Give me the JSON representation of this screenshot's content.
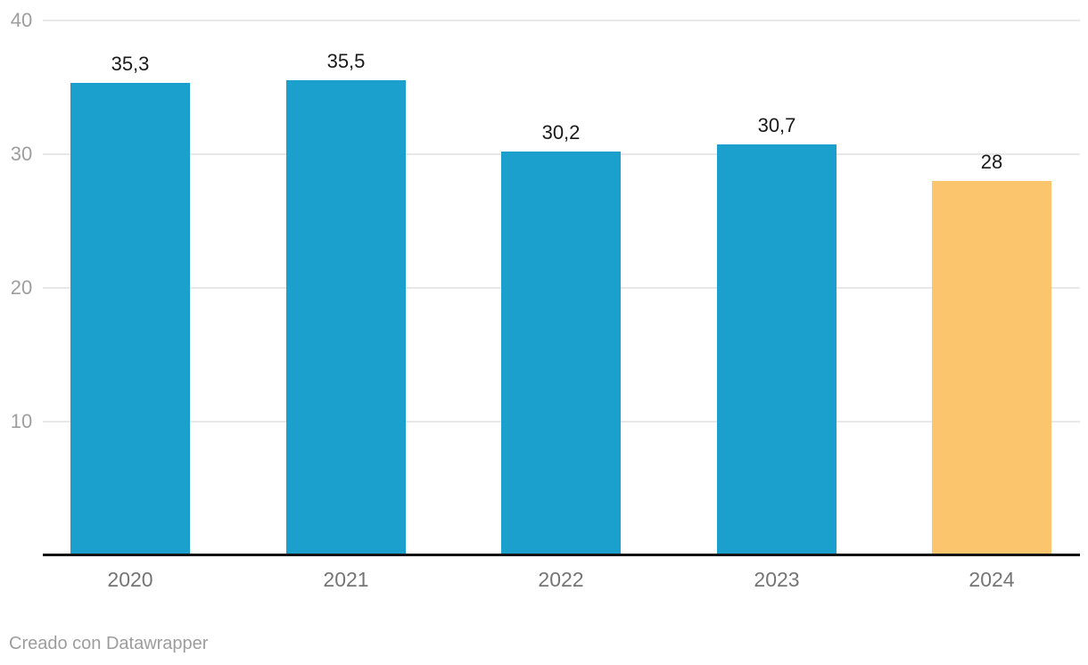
{
  "chart_data": {
    "type": "bar",
    "title": "",
    "xlabel": "",
    "ylabel": "",
    "categories": [
      "2020",
      "2021",
      "2022",
      "2023",
      "2024"
    ],
    "values": [
      35.3,
      35.5,
      30.2,
      30.7,
      28
    ],
    "display_values": [
      "35,3",
      "35,5",
      "30,2",
      "30,7",
      "28"
    ],
    "bar_colors": [
      "#1ba0cd",
      "#1ba0cd",
      "#1ba0cd",
      "#1ba0cd",
      "#fbc56d"
    ],
    "ylim": [
      0,
      40
    ],
    "yticks": [
      10,
      20,
      30,
      40
    ],
    "grid": true,
    "legend": false
  },
  "colors": {
    "bar_blue": "#1ba0cd",
    "bar_orange": "#fbc56d",
    "gridline": "#e8e8e8",
    "axis_line": "#141414",
    "y_tick_label": "#9e9e9e",
    "category_label": "#757575",
    "value_label": "#1a1a1a",
    "attribution": "#9d9d9d"
  },
  "footer": {
    "attribution": "Creado con Datawrapper"
  }
}
